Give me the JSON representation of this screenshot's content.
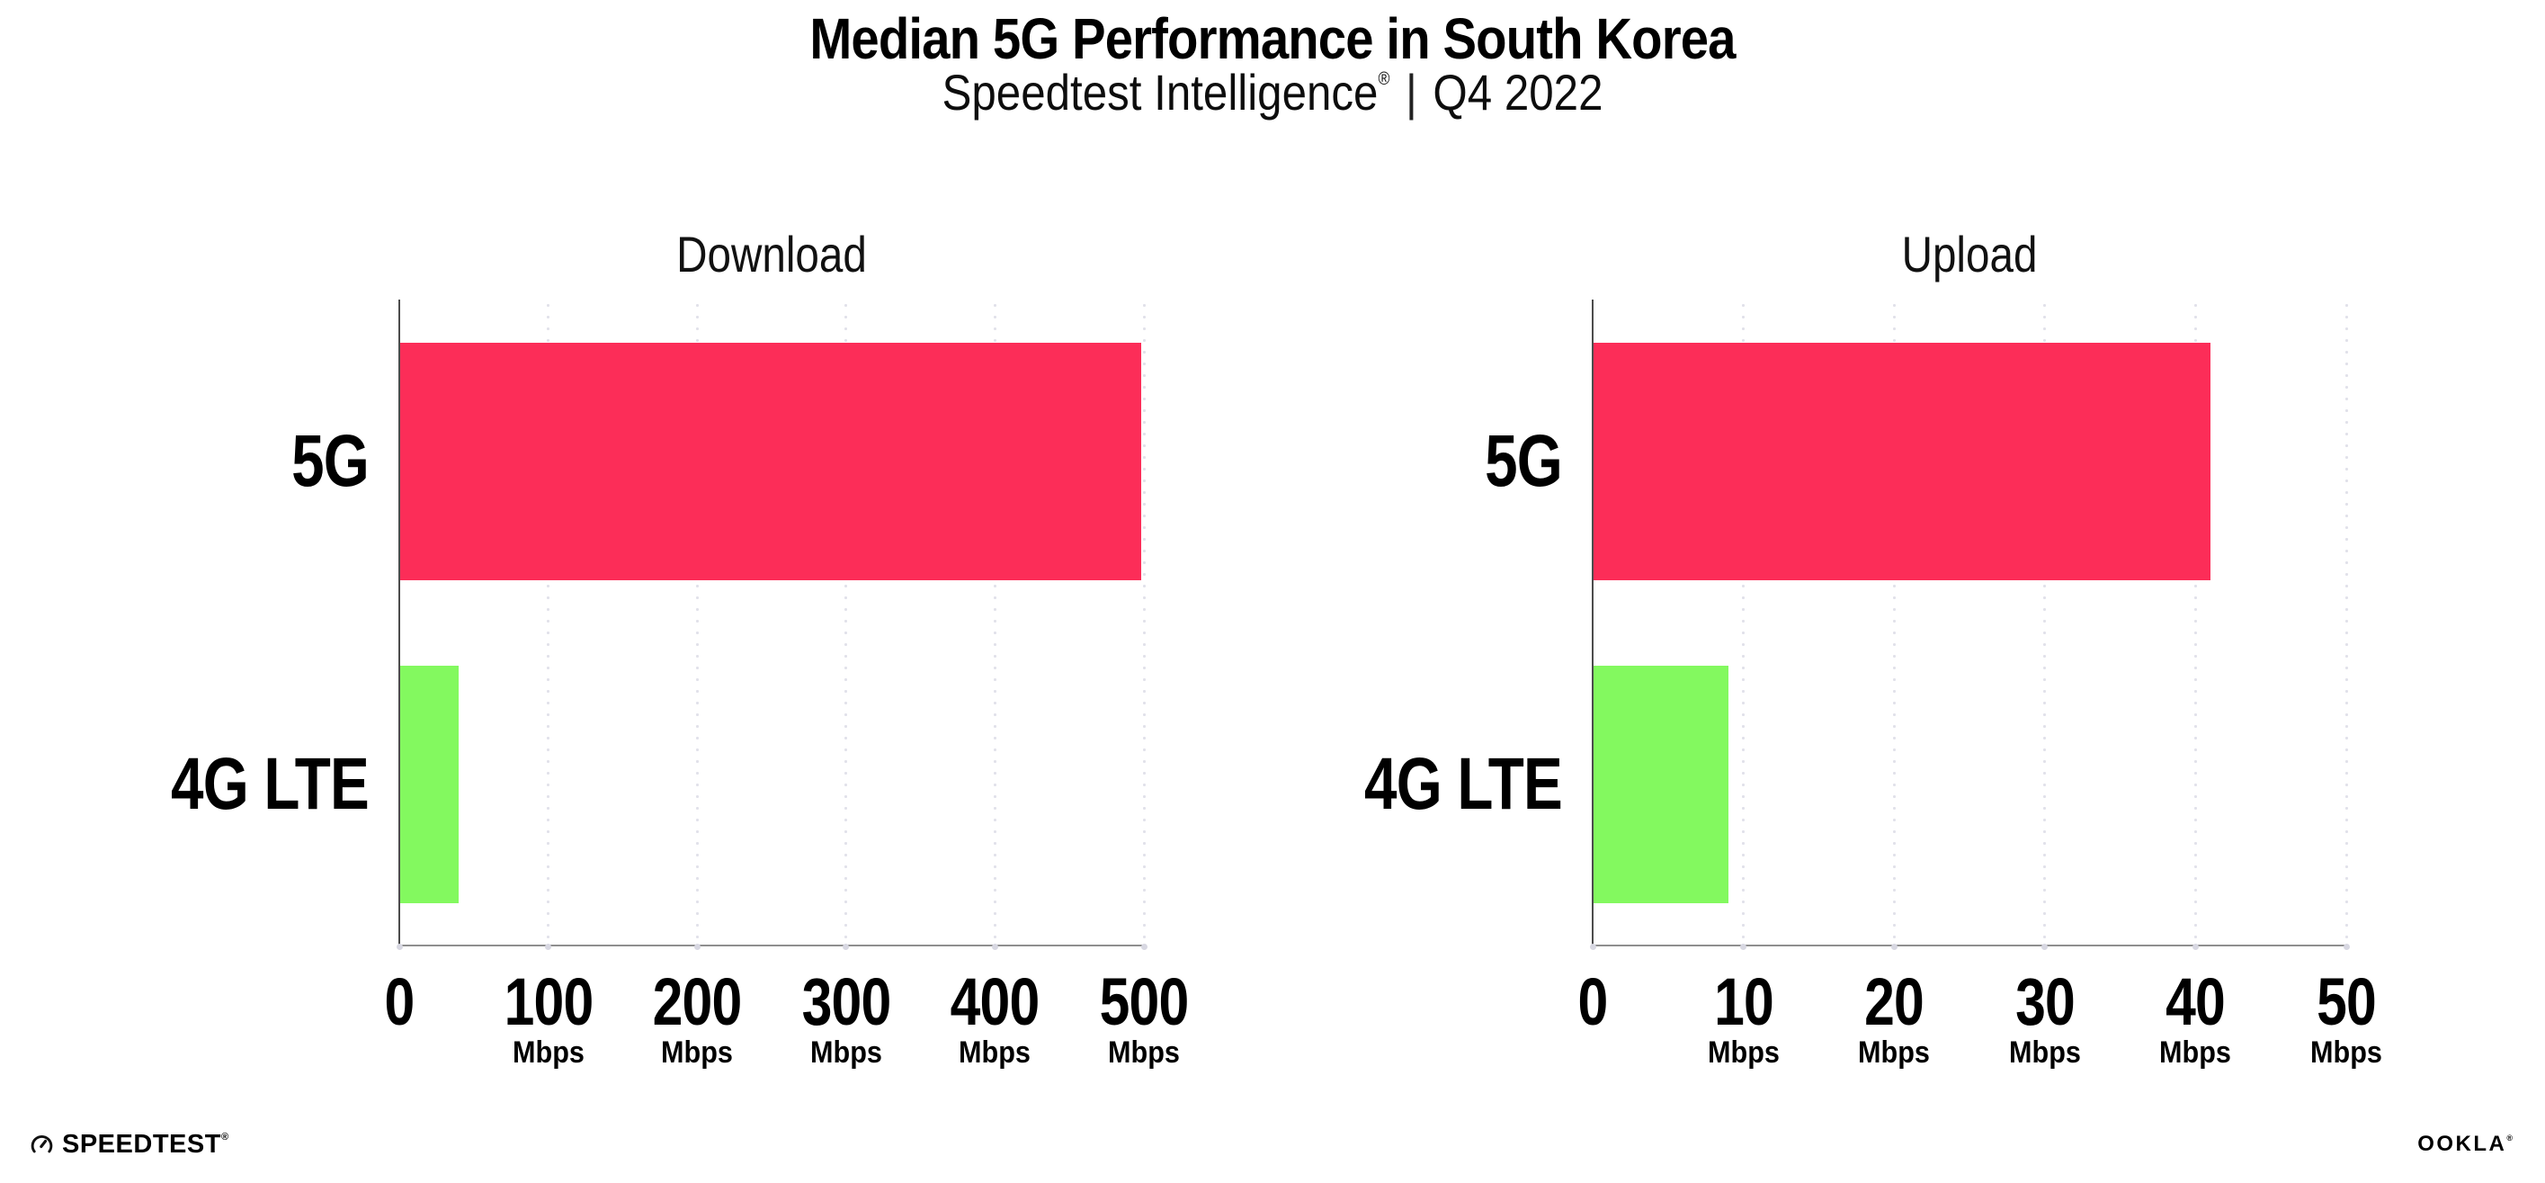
{
  "header": {
    "title": "Median 5G Performance in South Korea",
    "subtitle_brand": "Speedtest Intelligence",
    "subtitle_reg": "®",
    "subtitle_sep": "|",
    "subtitle_period": "Q4 2022"
  },
  "chart_data": [
    {
      "type": "bar",
      "orientation": "horizontal",
      "title": "Download",
      "categories": [
        "5G",
        "4G LTE"
      ],
      "values": [
        498,
        40
      ],
      "unit": "Mbps",
      "xlim": [
        0,
        500
      ],
      "xticks": [
        0,
        100,
        200,
        300,
        400,
        500
      ],
      "bar_colors": [
        "#fc2d58",
        "#83f95f"
      ],
      "grid": "dotted-vertical-at-ticks",
      "legend": "none"
    },
    {
      "type": "bar",
      "orientation": "horizontal",
      "title": "Upload",
      "categories": [
        "5G",
        "4G LTE"
      ],
      "values": [
        41,
        9
      ],
      "unit": "Mbps",
      "xlim": [
        0,
        50
      ],
      "xticks": [
        0,
        10,
        20,
        30,
        40,
        50
      ],
      "bar_colors": [
        "#fc2d58",
        "#83f95f"
      ],
      "grid": "dotted-vertical-at-ticks",
      "legend": "none"
    }
  ],
  "footer": {
    "speedtest_label": "SPEEDTEST",
    "speedtest_reg": "®",
    "ookla_label": "OOKLA",
    "ookla_reg": "®"
  },
  "colors": {
    "bar_5g": "#fc2d58",
    "bar_4g_lte": "#83f95f",
    "axis": "#8f8f8f",
    "grid_dot": "#e1e1ea",
    "text": "#000000",
    "background": "#ffffff"
  }
}
